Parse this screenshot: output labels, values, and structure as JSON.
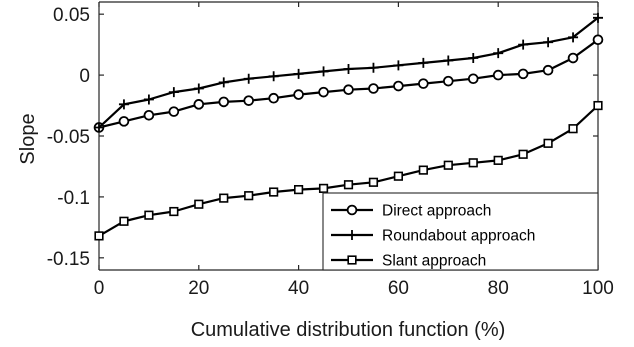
{
  "chart_data": {
    "type": "line",
    "title": "",
    "xlabel": "Cumulative distribution function (%)",
    "ylabel": "Slope",
    "xlim": [
      0,
      100
    ],
    "ylim": [
      -0.16,
      0.06
    ],
    "xticks": [
      0,
      20,
      40,
      60,
      80,
      100
    ],
    "xtick_labels": [
      "0",
      "20",
      "40",
      "60",
      "80",
      "100"
    ],
    "yticks": [
      0.05,
      0,
      -0.05,
      -0.1,
      -0.15
    ],
    "ytick_labels": [
      "0.05",
      "0",
      "-0.05",
      "-0.1",
      "-0.15"
    ],
    "grid": false,
    "legend_position": "bottom-right",
    "x": [
      0,
      5,
      10,
      15,
      20,
      25,
      30,
      35,
      40,
      45,
      50,
      55,
      60,
      65,
      70,
      75,
      80,
      85,
      90,
      95,
      100
    ],
    "series": [
      {
        "name": "Direct approach",
        "marker": "circle",
        "color": "#000000",
        "values": [
          -0.043,
          -0.038,
          -0.033,
          -0.03,
          -0.024,
          -0.022,
          -0.021,
          -0.019,
          -0.016,
          -0.014,
          -0.012,
          -0.011,
          -0.009,
          -0.007,
          -0.005,
          -0.003,
          0.0,
          0.001,
          0.004,
          0.014,
          0.029
        ]
      },
      {
        "name": "Roundabout approach",
        "marker": "plus",
        "color": "#000000",
        "values": [
          -0.043,
          -0.024,
          -0.02,
          -0.014,
          -0.011,
          -0.006,
          -0.003,
          -0.001,
          0.001,
          0.003,
          0.005,
          0.006,
          0.008,
          0.01,
          0.012,
          0.014,
          0.018,
          0.025,
          0.027,
          0.031,
          0.047
        ]
      },
      {
        "name": "Slant approach",
        "marker": "square",
        "color": "#000000",
        "values": [
          -0.132,
          -0.12,
          -0.115,
          -0.112,
          -0.106,
          -0.101,
          -0.099,
          -0.096,
          -0.094,
          -0.093,
          -0.09,
          -0.088,
          -0.083,
          -0.078,
          -0.074,
          -0.072,
          -0.07,
          -0.065,
          -0.056,
          -0.044,
          -0.025
        ]
      }
    ]
  }
}
